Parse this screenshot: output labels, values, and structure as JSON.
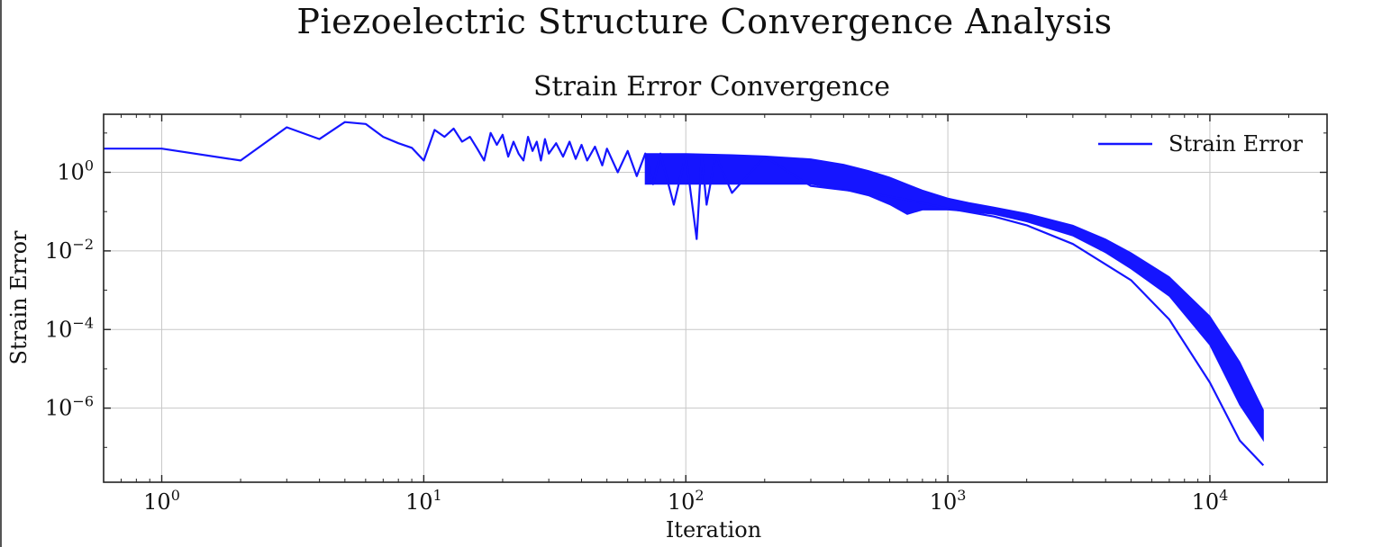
{
  "figure": {
    "suptitle": "Piezoelectric Structure Convergence Analysis"
  },
  "chart_data": {
    "type": "line",
    "title": "Strain Error Convergence",
    "xlabel": "Iteration",
    "ylabel": "Strain Error",
    "xscale": "log",
    "yscale": "log",
    "xlim": [
      0.6,
      28000
    ],
    "ylim": [
      1.3e-08,
      30
    ],
    "grid": true,
    "legend": {
      "placement": "top-right",
      "entries": [
        "Strain Error"
      ]
    },
    "x_ticks": [
      {
        "value": 1,
        "base": "10",
        "exp": "0"
      },
      {
        "value": 10,
        "base": "10",
        "exp": "1"
      },
      {
        "value": 100,
        "base": "10",
        "exp": "2"
      },
      {
        "value": 1000,
        "base": "10",
        "exp": "3"
      },
      {
        "value": 10000,
        "base": "10",
        "exp": "4"
      }
    ],
    "y_ticks": [
      {
        "value": 1,
        "base": "10",
        "exp": "0"
      },
      {
        "value": 0.01,
        "base": "10",
        "exp": "−2"
      },
      {
        "value": 0.0001,
        "base": "10",
        "exp": "−4"
      },
      {
        "value": 1e-06,
        "base": "10",
        "exp": "−6"
      }
    ],
    "series": [
      {
        "name": "Strain Error",
        "color": "#1515ff",
        "x": [
          0.6,
          1,
          2,
          3,
          4,
          5,
          6,
          7,
          8,
          9,
          10,
          11,
          12,
          13,
          14,
          15,
          16,
          17,
          18,
          19,
          20,
          21,
          22,
          23,
          24,
          25,
          26,
          27,
          28,
          29,
          30,
          32,
          34,
          36,
          38,
          40,
          42,
          45,
          48,
          50,
          55,
          60,
          65,
          70,
          75,
          80,
          90,
          100,
          110,
          115,
          120,
          130,
          150,
          200,
          300,
          500,
          700,
          1000,
          1500,
          2000,
          3000,
          5000,
          7000,
          10000,
          13000,
          16000
        ],
        "y": [
          4.0,
          4.0,
          2.0,
          14.0,
          7.0,
          19.0,
          17.0,
          8.0,
          5.5,
          4.2,
          2.0,
          12.0,
          8.0,
          13.0,
          6.0,
          8.0,
          4.0,
          2.0,
          10.0,
          5.0,
          9.0,
          2.5,
          6.0,
          3.0,
          2.0,
          8.0,
          3.5,
          6.0,
          2.0,
          7.0,
          3.0,
          5.5,
          2.5,
          6.0,
          2.2,
          5.0,
          2.0,
          4.5,
          1.5,
          4.0,
          1.0,
          3.5,
          0.8,
          3.0,
          0.5,
          3.0,
          0.15,
          2.8,
          0.02,
          2.8,
          0.15,
          2.7,
          0.3,
          2.5,
          0.45,
          0.3,
          0.2,
          0.12,
          0.075,
          0.045,
          0.015,
          0.0018,
          0.00018,
          4.5e-06,
          1.5e-07,
          3.5e-08
        ],
        "band": {
          "x": [
            70,
            100,
            150,
            200,
            300,
            400,
            500,
            600,
            700,
            800,
            1000,
            1200,
            1500,
            2000,
            3000,
            4000,
            5000,
            7000,
            10000,
            13000,
            16000
          ],
          "upper": [
            3.0,
            3.0,
            2.8,
            2.6,
            2.2,
            1.6,
            1.1,
            0.75,
            0.5,
            0.35,
            0.22,
            0.17,
            0.13,
            0.09,
            0.045,
            0.02,
            0.009,
            0.0022,
            0.00022,
            1.5e-05,
            9e-07
          ],
          "lower": [
            0.5,
            0.5,
            0.5,
            0.5,
            0.5,
            0.36,
            0.25,
            0.15,
            0.085,
            0.11,
            0.11,
            0.1,
            0.085,
            0.055,
            0.024,
            0.009,
            0.0035,
            0.0007,
            4e-05,
            1.2e-06,
            1.5e-07
          ]
        }
      }
    ]
  }
}
